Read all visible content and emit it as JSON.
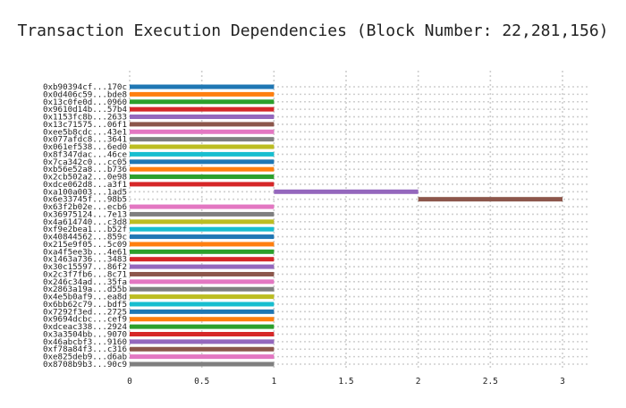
{
  "chart_data": {
    "type": "bar",
    "orientation": "horizontal-gantt",
    "title": "Transaction Execution Dependencies (Block Number: 22,281,156)",
    "xlabel": "",
    "ylabel": "",
    "xlim": [
      0,
      3.2
    ],
    "xticks": [
      0,
      0.5,
      1,
      1.5,
      2,
      2.5,
      3
    ],
    "xtick_labels": [
      "0",
      "0.5",
      "1",
      "1.5",
      "2",
      "2.5",
      "3"
    ],
    "grid": true,
    "legend": "none",
    "palette": [
      "#1f77b4",
      "#ff7f0e",
      "#2ca02c",
      "#d62728",
      "#9467bd",
      "#8c564b",
      "#e377c2",
      "#7f7f7f",
      "#bcbd22",
      "#17becf"
    ],
    "transactions": [
      {
        "label": "0xb90394cf...170c",
        "start": 0,
        "end": 1
      },
      {
        "label": "0x0d406c59...bde8",
        "start": 0,
        "end": 1
      },
      {
        "label": "0x13c0fe0d...0960",
        "start": 0,
        "end": 1
      },
      {
        "label": "0x9610d14b...57b4",
        "start": 0,
        "end": 1
      },
      {
        "label": "0x1153fc8b...2633",
        "start": 0,
        "end": 1
      },
      {
        "label": "0x13c71575...06f1",
        "start": 0,
        "end": 1
      },
      {
        "label": "0xee5b8cdc...43e1",
        "start": 0,
        "end": 1
      },
      {
        "label": "0x077afdc8...3641",
        "start": 0,
        "end": 1
      },
      {
        "label": "0x061ef538...6ed0",
        "start": 0,
        "end": 1
      },
      {
        "label": "0x8f347dac...46ce",
        "start": 0,
        "end": 1
      },
      {
        "label": "0x7ca342c0...cc05",
        "start": 0,
        "end": 1
      },
      {
        "label": "0xb56e52a8...b736",
        "start": 0,
        "end": 1
      },
      {
        "label": "0x2cb502a2...0e98",
        "start": 0,
        "end": 1
      },
      {
        "label": "0xdce062d8...a3f1",
        "start": 0,
        "end": 1
      },
      {
        "label": "0xa100a003...1ad5",
        "start": 1,
        "end": 2
      },
      {
        "label": "0x6e33745f...98b5",
        "start": 2,
        "end": 3
      },
      {
        "label": "0x63f2b02e...ecb6",
        "start": 0,
        "end": 1
      },
      {
        "label": "0x36975124...7e13",
        "start": 0,
        "end": 1
      },
      {
        "label": "0x4a614740...c3d8",
        "start": 0,
        "end": 1
      },
      {
        "label": "0xf9e2bea1...b52f",
        "start": 0,
        "end": 1
      },
      {
        "label": "0x40844562...859c",
        "start": 0,
        "end": 1
      },
      {
        "label": "0x215e9f05...5c09",
        "start": 0,
        "end": 1
      },
      {
        "label": "0xa4f5ee3b...4e61",
        "start": 0,
        "end": 1
      },
      {
        "label": "0x1463a736...3483",
        "start": 0,
        "end": 1
      },
      {
        "label": "0x30c15597...86f2",
        "start": 0,
        "end": 1
      },
      {
        "label": "0x2c3f7fb6...8c71",
        "start": 0,
        "end": 1
      },
      {
        "label": "0x246c34ad...35fa",
        "start": 0,
        "end": 1
      },
      {
        "label": "0x2863a19a...d55b",
        "start": 0,
        "end": 1
      },
      {
        "label": "0x4e5b0af9...ea8d",
        "start": 0,
        "end": 1
      },
      {
        "label": "0x6bb62c79...bdf5",
        "start": 0,
        "end": 1
      },
      {
        "label": "0x7292f3ed...2725",
        "start": 0,
        "end": 1
      },
      {
        "label": "0x9694dcbc...cef9",
        "start": 0,
        "end": 1
      },
      {
        "label": "0xdceac338...2924",
        "start": 0,
        "end": 1
      },
      {
        "label": "0x3a3504bb...9070",
        "start": 0,
        "end": 1
      },
      {
        "label": "0x46abcbf3...9160",
        "start": 0,
        "end": 1
      },
      {
        "label": "0xf78a84f3...c316",
        "start": 0,
        "end": 1
      },
      {
        "label": "0xe825deb9...d6ab",
        "start": 0,
        "end": 1
      },
      {
        "label": "0x8708b9b3...90c9",
        "start": 0,
        "end": 1
      }
    ]
  }
}
